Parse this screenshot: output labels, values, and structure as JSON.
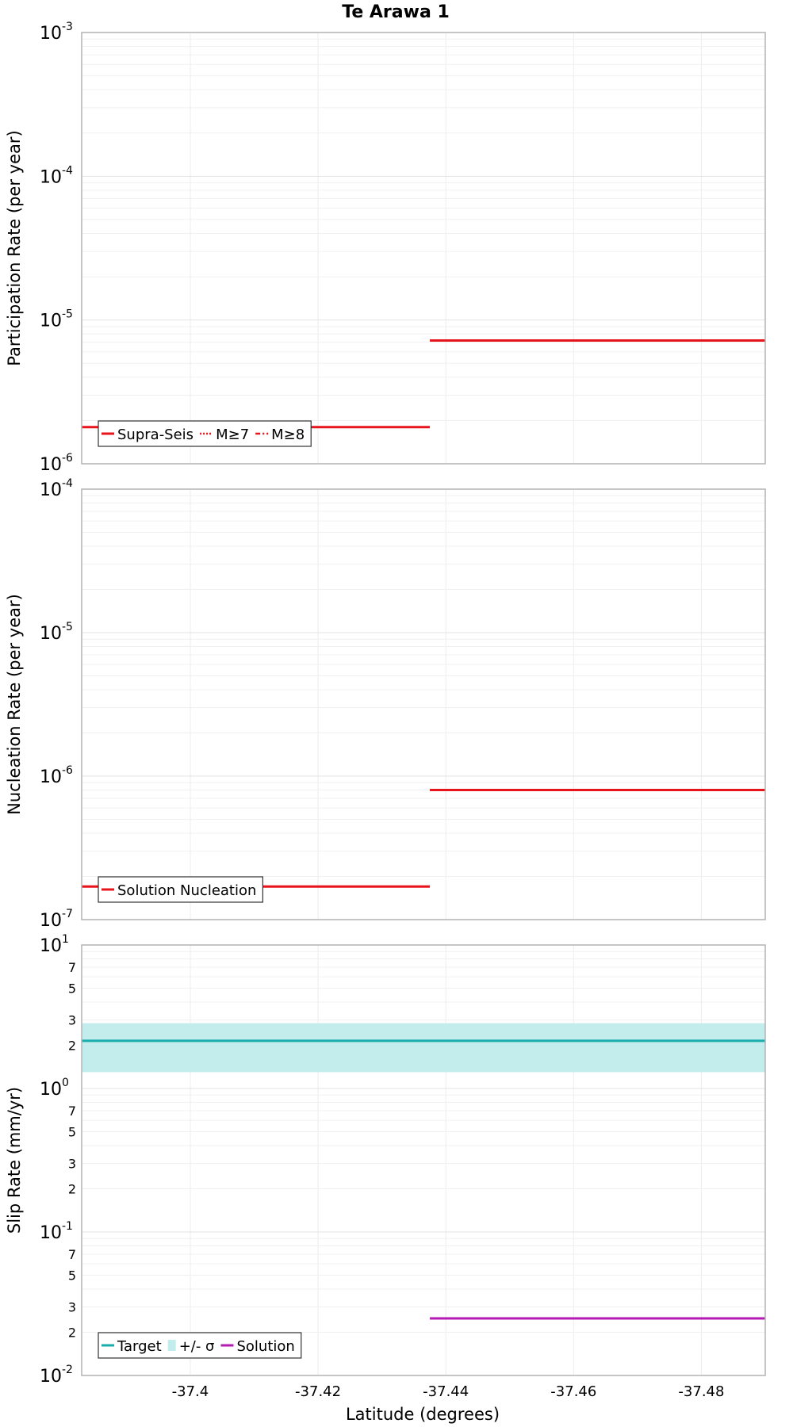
{
  "chart_data": {
    "title": "Te Arawa 1",
    "xlabel": "Latitude (degrees)",
    "xlim": [
      -37.383,
      -37.49
    ],
    "x_ticks": [
      {
        "value": -37.4,
        "label": "-37.4"
      },
      {
        "value": -37.42,
        "label": "-37.42"
      },
      {
        "value": -37.44,
        "label": "-37.44"
      },
      {
        "value": -37.46,
        "label": "-37.46"
      },
      {
        "value": -37.48,
        "label": "-37.48"
      }
    ],
    "panels": [
      {
        "id": "participation",
        "type": "line",
        "ylabel": "Participation Rate (per year)",
        "yscale": "log",
        "ylim": [
          1e-06,
          0.001
        ],
        "decade_labels": [
          {
            "value": 1e-06,
            "base": "10",
            "exp": "-6"
          },
          {
            "value": 1e-05,
            "base": "10",
            "exp": "-5"
          },
          {
            "value": 0.0001,
            "base": "10",
            "exp": "-4"
          },
          {
            "value": 0.001,
            "base": "10",
            "exp": "-3"
          }
        ],
        "minor_labels": [],
        "bands": [],
        "series": [
          {
            "name": "Supra-Seis",
            "color": "#e8141c",
            "dash": "solid",
            "segments": [
              {
                "x0": -37.383,
                "x1": -37.4375,
                "y": 1.8e-06
              },
              {
                "x0": -37.4375,
                "x1": -37.49,
                "y": 7.2e-06
              }
            ]
          }
        ],
        "legend": {
          "position": "bottom-left",
          "items": [
            {
              "label": "Supra-Seis",
              "color": "#e8141c",
              "style": "solid"
            },
            {
              "label": "M≥7",
              "color": "#e8141c",
              "style": "dotted"
            },
            {
              "label": "M≥8",
              "color": "#e8141c",
              "style": "dashdot"
            }
          ]
        }
      },
      {
        "id": "nucleation",
        "type": "line",
        "ylabel": "Nucleation Rate (per year)",
        "yscale": "log",
        "ylim": [
          1e-07,
          0.0001
        ],
        "decade_labels": [
          {
            "value": 1e-07,
            "base": "10",
            "exp": "-7"
          },
          {
            "value": 1e-06,
            "base": "10",
            "exp": "-6"
          },
          {
            "value": 1e-05,
            "base": "10",
            "exp": "-5"
          },
          {
            "value": 0.0001,
            "base": "10",
            "exp": "-4"
          }
        ],
        "minor_labels": [],
        "bands": [],
        "series": [
          {
            "name": "Solution Nucleation",
            "color": "#e8141c",
            "dash": "solid",
            "segments": [
              {
                "x0": -37.383,
                "x1": -37.4375,
                "y": 1.7e-07
              },
              {
                "x0": -37.4375,
                "x1": -37.49,
                "y": 8e-07
              }
            ]
          }
        ],
        "legend": {
          "position": "bottom-left",
          "items": [
            {
              "label": "Solution Nucleation",
              "color": "#e8141c",
              "style": "solid"
            }
          ]
        }
      },
      {
        "id": "slip",
        "type": "line",
        "ylabel": "Slip Rate (mm/yr)",
        "yscale": "log",
        "ylim": [
          0.01,
          10
        ],
        "decade_labels": [
          {
            "value": 0.01,
            "base": "10",
            "exp": "-2"
          },
          {
            "value": 0.1,
            "base": "10",
            "exp": "-1"
          },
          {
            "value": 1,
            "base": "10",
            "exp": "0"
          },
          {
            "value": 10,
            "base": "10",
            "exp": "1"
          }
        ],
        "minor_labels": [
          {
            "value": 0.02,
            "label": "2"
          },
          {
            "value": 0.03,
            "label": "3"
          },
          {
            "value": 0.05,
            "label": "5"
          },
          {
            "value": 0.07,
            "label": "7"
          },
          {
            "value": 0.2,
            "label": "2"
          },
          {
            "value": 0.3,
            "label": "3"
          },
          {
            "value": 0.5,
            "label": "5"
          },
          {
            "value": 0.7,
            "label": "7"
          },
          {
            "value": 2,
            "label": "2"
          },
          {
            "value": 3,
            "label": "3"
          },
          {
            "value": 5,
            "label": "5"
          },
          {
            "value": 7,
            "label": "7"
          }
        ],
        "bands": [
          {
            "name": "+/- σ",
            "color": "#c3ecec",
            "x0": -37.383,
            "x1": -37.49,
            "y0": 1.3,
            "y1": 2.85
          }
        ],
        "series": [
          {
            "name": "Target",
            "color": "#1aadad",
            "dash": "solid",
            "segments": [
              {
                "x0": -37.383,
                "x1": -37.49,
                "y": 2.15
              }
            ]
          },
          {
            "name": "Solution",
            "color": "#b41ab4",
            "dash": "solid",
            "segments": [
              {
                "x0": -37.4375,
                "x1": -37.49,
                "y": 0.025
              }
            ]
          }
        ],
        "legend": {
          "position": "bottom-left",
          "items": [
            {
              "label": "Target",
              "color": "#1aadad",
              "style": "solid"
            },
            {
              "label": "+/- σ",
              "color": "#c3ecec",
              "style": "band"
            },
            {
              "label": "Solution",
              "color": "#b41ab4",
              "style": "solid"
            }
          ]
        }
      }
    ]
  }
}
